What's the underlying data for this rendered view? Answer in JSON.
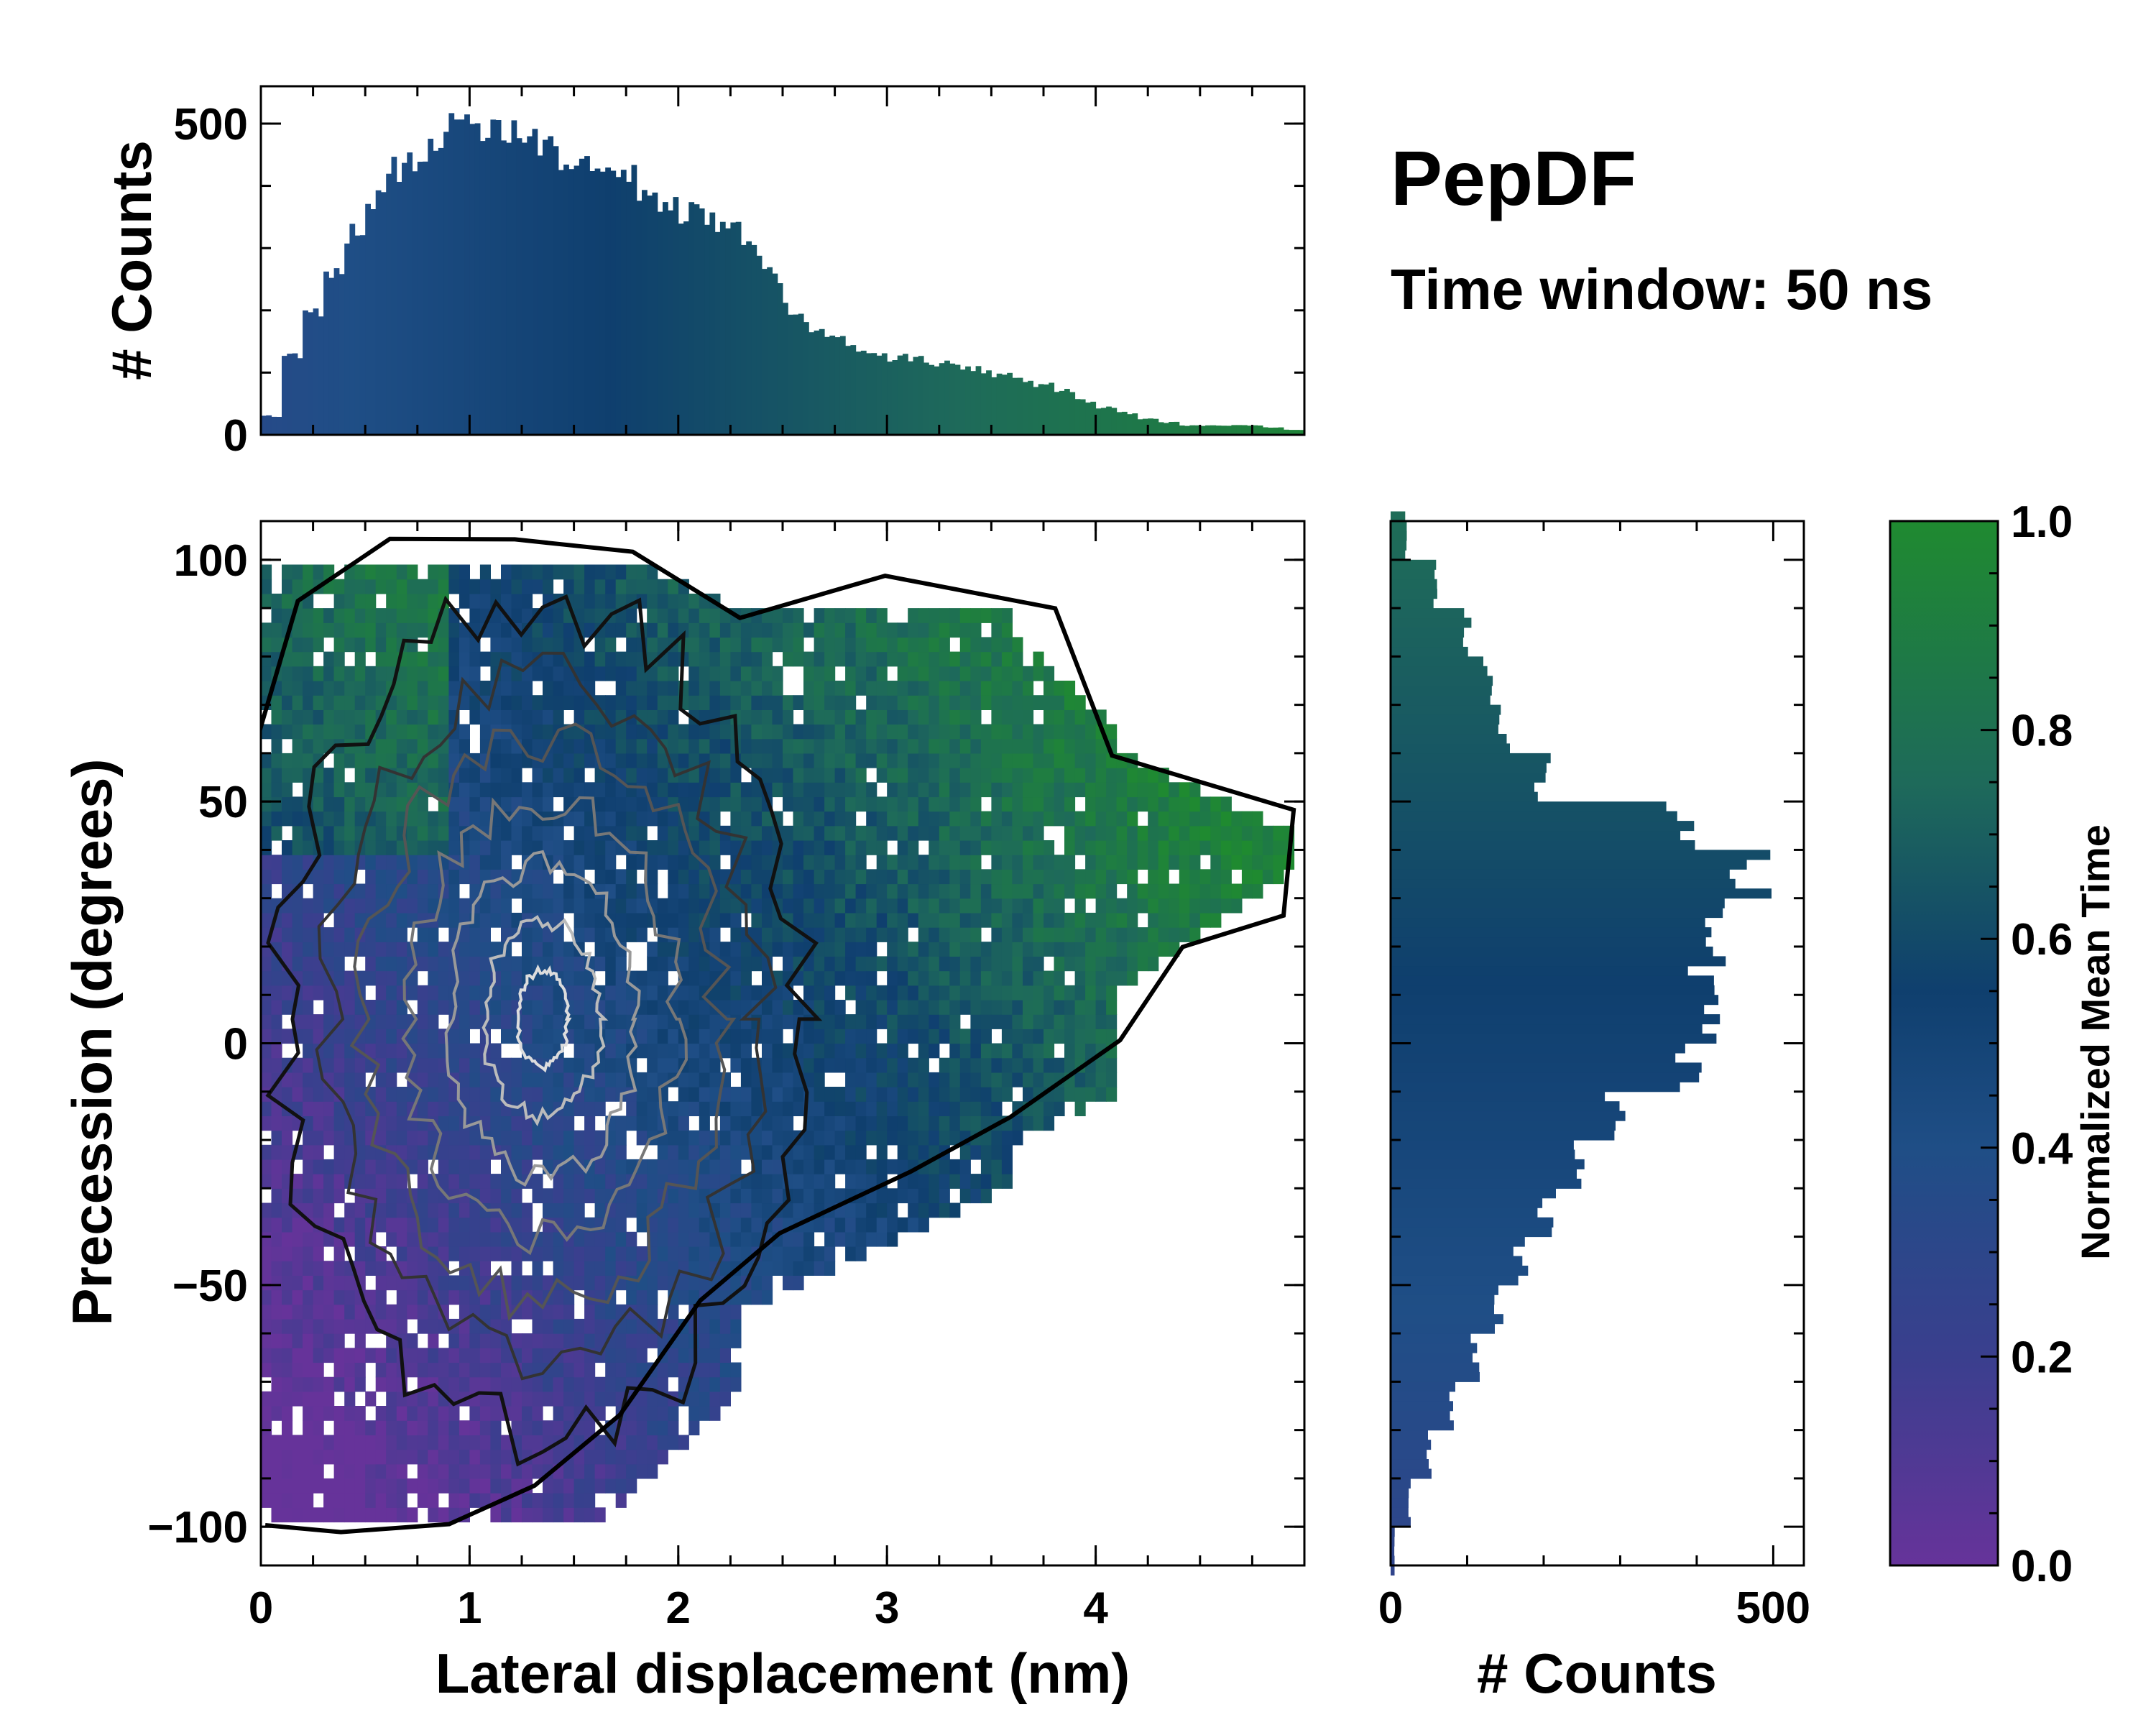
{
  "chart_data": [
    {
      "type": "heatmap",
      "name": "main-2d-histogram",
      "xlabel": "Lateral displacement (nm)",
      "ylabel": "Precession (degrees)",
      "xlim": [
        0,
        5.0
      ],
      "ylim": [
        -108,
        108
      ],
      "xticks": [
        "0",
        "1",
        "2",
        "3",
        "4"
      ],
      "yticks": [
        "−100",
        "−50",
        "0",
        "50",
        "100"
      ],
      "xtick_values": [
        0,
        1,
        2,
        3,
        4
      ],
      "ytick_values": [
        -100,
        -50,
        0,
        50,
        100
      ],
      "color_metric": "Normalized Mean Time",
      "contours": "density contours (black outer, grey/white inner)",
      "trend_points": [
        {
          "x": 0.3,
          "y": -20,
          "t": 0.15
        },
        {
          "x": 1.0,
          "y": 0,
          "t": 0.3
        },
        {
          "x": 1.5,
          "y": 10,
          "t": 0.4
        },
        {
          "x": 2.0,
          "y": 15,
          "t": 0.5
        },
        {
          "x": 3.0,
          "y": 30,
          "t": 0.65
        },
        {
          "x": 4.0,
          "y": 45,
          "t": 0.85
        },
        {
          "x": 4.7,
          "y": 45,
          "t": 0.95
        }
      ]
    },
    {
      "type": "bar",
      "name": "top-marginal-histogram",
      "ylabel": "# Counts",
      "ylim": [
        0,
        560
      ],
      "yticks": [
        "0",
        "500"
      ],
      "ytick_values": [
        0,
        500
      ],
      "x": [
        0.05,
        0.15,
        0.25,
        0.35,
        0.45,
        0.55,
        0.65,
        0.75,
        0.85,
        0.95,
        1.05,
        1.15,
        1.25,
        1.35,
        1.45,
        1.55,
        1.65,
        1.75,
        1.85,
        1.95,
        2.05,
        2.15,
        2.25,
        2.35,
        2.45,
        2.55,
        2.65,
        2.75,
        2.85,
        2.95,
        3.05,
        3.15,
        3.25,
        3.35,
        3.45,
        3.55,
        3.65,
        3.75,
        3.85,
        3.95,
        4.05,
        4.15,
        4.25,
        4.35,
        4.45,
        4.55,
        4.65,
        4.75,
        4.85,
        4.95
      ],
      "values": [
        30,
        130,
        200,
        255,
        320,
        380,
        430,
        450,
        470,
        505,
        490,
        480,
        490,
        470,
        445,
        430,
        420,
        410,
        385,
        370,
        355,
        345,
        335,
        300,
        255,
        205,
        175,
        155,
        140,
        130,
        125,
        120,
        115,
        110,
        105,
        95,
        90,
        80,
        70,
        55,
        45,
        35,
        25,
        20,
        15,
        15,
        15,
        15,
        12,
        8
      ]
    },
    {
      "type": "bar",
      "orientation": "horizontal",
      "name": "right-marginal-histogram",
      "xlabel": "# Counts",
      "xlim": [
        0,
        540
      ],
      "xticks": [
        "0",
        "500"
      ],
      "xtick_values": [
        0,
        500
      ],
      "y": [
        -105,
        -95,
        -85,
        -75,
        -65,
        -55,
        -45,
        -35,
        -25,
        -15,
        -5,
        5,
        15,
        25,
        35,
        45,
        55,
        65,
        75,
        85,
        95,
        105
      ],
      "values": [
        5,
        25,
        50,
        80,
        110,
        140,
        170,
        205,
        250,
        300,
        380,
        420,
        410,
        420,
        470,
        380,
        200,
        150,
        130,
        100,
        60,
        20
      ]
    },
    {
      "type": "colorbar",
      "name": "time-colorbar",
      "label": "Normalized Mean Time",
      "range": [
        0.0,
        1.0
      ],
      "ticks": [
        "0.0",
        "0.2",
        "0.4",
        "0.6",
        "0.8",
        "1.0"
      ],
      "tick_values": [
        0.0,
        0.2,
        0.4,
        0.6,
        0.8,
        1.0
      ],
      "colors": [
        "#66339a",
        "#3a3f8e",
        "#1f4e86",
        "#0f3f6e",
        "#1e6a5a",
        "#1f8a30"
      ]
    }
  ],
  "header": {
    "title": "PepDF",
    "subtitle": "Time window: 50 ns"
  }
}
